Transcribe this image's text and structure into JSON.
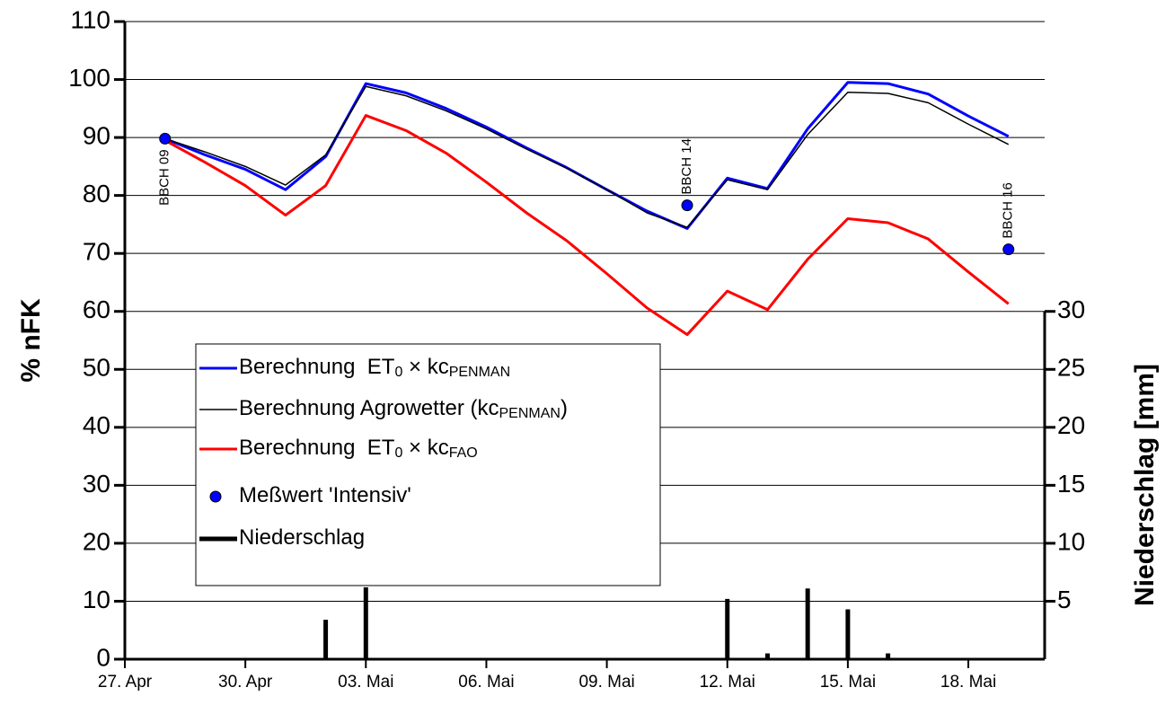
{
  "chart_data": {
    "type": "line",
    "ylabel": "% nFK",
    "y2label": "Niederschlag [mm]",
    "x": [
      1,
      2,
      3,
      4,
      5,
      6,
      7,
      8,
      9,
      10,
      11,
      12,
      13,
      14,
      15,
      16,
      17,
      18,
      19,
      20,
      21,
      22
    ],
    "xlim": [
      0,
      22.9
    ],
    "xticks": [
      {
        "value": 0,
        "label": "27. Apr"
      },
      {
        "value": 3,
        "label": "30. Apr"
      },
      {
        "value": 6,
        "label": "03. Mai"
      },
      {
        "value": 9,
        "label": "06. Mai"
      },
      {
        "value": 12,
        "label": "09. Mai"
      },
      {
        "value": 15,
        "label": "12. Mai"
      },
      {
        "value": 18,
        "label": "15. Mai"
      },
      {
        "value": 21,
        "label": "18. Mai"
      }
    ],
    "ylim": [
      0,
      110
    ],
    "yticks": [
      0,
      10,
      20,
      30,
      40,
      50,
      60,
      70,
      80,
      90,
      100,
      110
    ],
    "y2lim": [
      0,
      55
    ],
    "y2ticks": [
      5,
      10,
      15,
      20,
      25,
      30
    ],
    "grid": true,
    "legend": "left",
    "series": [
      {
        "name": [
          "Berechnung  ET",
          "0",
          " × kc",
          "PENMAN"
        ],
        "type": "line",
        "color": "#0000ff",
        "values": [
          89.8,
          87,
          84.5,
          81,
          86.7,
          99.3,
          97.7,
          95,
          91.8,
          88.2,
          84.8,
          81,
          77.3,
          74.3,
          83,
          81.2,
          91.5,
          99.5,
          99.3,
          97.5,
          93.7,
          90.2
        ]
      },
      {
        "name": [
          "Berechnung Agrowetter (kc",
          "PENMAN",
          ")"
        ],
        "type": "line",
        "color": "#000000",
        "values": [
          89.8,
          87.5,
          85,
          81.8,
          87,
          98.8,
          97.2,
          94.6,
          91.5,
          88,
          84.7,
          81,
          77,
          74.5,
          82.7,
          81,
          90.5,
          97.8,
          97.6,
          96,
          92.3,
          88.8
        ]
      },
      {
        "name": [
          "Berechnung  ET",
          "0",
          " × kc",
          "FAO"
        ],
        "type": "line",
        "color": "#ff0000",
        "values": [
          89.5,
          85.7,
          81.7,
          76.6,
          81.7,
          93.8,
          91.2,
          87.3,
          82.3,
          77,
          72.2,
          66.5,
          60.6,
          56,
          63.5,
          60.3,
          69,
          76,
          75.3,
          72.5,
          66.8,
          61.3
        ]
      },
      {
        "name": [
          "Meßwert 'Intensiv'"
        ],
        "type": "scatter",
        "color": "#0000ff",
        "values": [
          89.8,
          null,
          null,
          null,
          null,
          null,
          null,
          null,
          null,
          null,
          null,
          null,
          null,
          78.3,
          null,
          null,
          null,
          null,
          null,
          null,
          null,
          70.7
        ]
      },
      {
        "name": [
          "Niederschlag"
        ],
        "type": "bar",
        "axis": "y2",
        "color": "#000000",
        "values": [
          0,
          0,
          0,
          0,
          3.4,
          6.2,
          0,
          0,
          0,
          0,
          0,
          0,
          0,
          0,
          5.2,
          0.5,
          6.1,
          4.3,
          0.5,
          0.1,
          0,
          0
        ]
      }
    ],
    "annotations": [
      {
        "text": "BBCH 09",
        "x": 1,
        "series": 3
      },
      {
        "text": "BBCH 14",
        "x": 14,
        "series": 3
      },
      {
        "text": "BBCH 16",
        "x": 22,
        "series": 3
      }
    ]
  }
}
